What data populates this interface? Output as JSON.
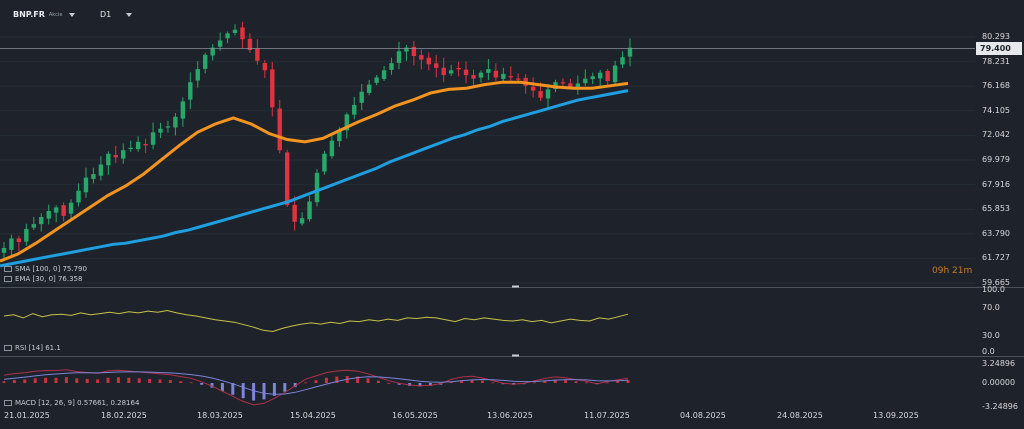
{
  "header": {
    "symbol": "BNP.FR",
    "symbol_sub": "Akcie",
    "timeframe": "D1"
  },
  "colors": {
    "background": "#1e232b",
    "bull": "#27a869",
    "bear": "#e0323f",
    "sma": "#1f9ee0",
    "ema": "#f2941f",
    "rsi": "#c9c14a",
    "macd_line": "#b0304a",
    "signal_line": "#7c84d8"
  },
  "price_panel": {
    "sma_legend": "SMA [100, 0] 75.790",
    "ema_legend": "EMA [30, 0] 76.358",
    "current_price": "79.400",
    "countdown_h": "09",
    "countdown_h_unit": "h",
    "countdown_m": "21",
    "countdown_m_unit": "m",
    "y_ticks": [
      "80.293",
      "78.231",
      "76.168",
      "74.105",
      "72.042",
      "69.979",
      "67.916",
      "65.853",
      "63.790",
      "61.727",
      "59.665"
    ]
  },
  "rsi_panel": {
    "legend": "RSI [14] 61.1",
    "y_ticks": [
      "100.0",
      "70.0",
      "30.0",
      "0.0"
    ]
  },
  "macd_panel": {
    "legend": "MACD [12, 26, 9] 0.57661, 0.28164",
    "y_ticks": [
      "3.24896",
      "0.00000",
      "-3.24896"
    ]
  },
  "x_axis": {
    "labels": [
      "21.01.2025",
      "18.02.2025",
      "18.03.2025",
      "15.04.2025",
      "16.05.2025",
      "13.06.2025",
      "11.07.2025",
      "04.08.2025",
      "24.08.2025",
      "13.09.2025"
    ]
  },
  "chart_data": [
    {
      "type": "candlestick",
      "title": "BNP.FR D1",
      "x": [
        "21.01.2025",
        "18.02.2025",
        "18.03.2025",
        "15.04.2025",
        "16.05.2025",
        "13.06.2025",
        "11.07.2025",
        "04.08.2025",
        "24.08.2025",
        "13.09.2025"
      ],
      "ylim": [
        59.665,
        81.3
      ],
      "close_path": [
        62.6,
        63.4,
        63.1,
        64.2,
        64.6,
        65.2,
        65.7,
        66.0,
        65.3,
        66.4,
        67.4,
        68.5,
        68.8,
        69.6,
        70.5,
        70.2,
        70.8,
        71.0,
        71.5,
        71.2,
        72.3,
        72.6,
        72.8,
        73.6,
        74.9,
        76.5,
        77.6,
        78.8,
        79.4,
        80.0,
        80.6,
        80.9,
        80.1,
        79.2,
        78.3,
        77.5,
        74.4,
        70.8,
        66.2,
        64.8,
        65.1,
        66.5,
        68.9,
        70.5,
        71.6,
        72.5,
        73.8,
        74.6,
        75.7,
        76.3,
        76.9,
        77.5,
        78.1,
        79.1,
        79.4,
        78.7,
        78.4,
        78.0,
        77.7,
        77.1,
        77.5,
        77.6,
        77.1,
        76.8,
        77.3,
        77.6,
        76.9,
        77.2,
        77.0,
        76.8,
        76.2,
        75.8,
        75.2,
        75.9,
        76.5,
        76.4,
        76.1,
        76.4,
        76.8,
        77.0,
        77.3,
        76.6,
        77.9,
        78.6,
        79.4
      ],
      "series": [
        {
          "name": "SMA [100, 0]",
          "last": 75.79,
          "path": [
            61.1,
            61.3,
            61.5,
            61.7,
            61.9,
            62.1,
            62.3,
            62.5,
            62.7,
            62.9,
            63.0,
            63.2,
            63.4,
            63.6,
            63.9,
            64.1,
            64.4,
            64.7,
            65.0,
            65.3,
            65.6,
            65.9,
            66.2,
            66.5,
            66.9,
            67.3,
            67.7,
            68.1,
            68.5,
            68.9,
            69.3,
            69.8,
            70.2,
            70.6,
            71.0,
            71.4,
            71.8,
            72.1,
            72.5,
            72.8,
            73.2,
            73.5,
            73.8,
            74.1,
            74.4,
            74.7,
            75.0,
            75.2,
            75.4,
            75.6,
            75.8
          ]
        },
        {
          "name": "EMA [30, 0]",
          "last": 76.358,
          "path": [
            61.5,
            62.1,
            63.0,
            64.0,
            65.0,
            66.0,
            67.0,
            67.8,
            68.8,
            70.0,
            71.2,
            72.3,
            73.0,
            73.5,
            73.0,
            72.2,
            71.7,
            71.5,
            71.8,
            72.5,
            73.2,
            73.8,
            74.5,
            75.0,
            75.6,
            75.9,
            76.0,
            76.3,
            76.5,
            76.5,
            76.3,
            76.1,
            76.0,
            76.0,
            76.2,
            76.4
          ]
        }
      ]
    },
    {
      "type": "line",
      "title": "RSI [14]",
      "ylim": [
        0,
        100
      ],
      "series": [
        {
          "name": "RSI [14]",
          "last": 61.1,
          "values": [
            58,
            60,
            55,
            62,
            57,
            60,
            61,
            59,
            63,
            60,
            62,
            64,
            62,
            65,
            63,
            66,
            64,
            67,
            63,
            60,
            58,
            55,
            52,
            50,
            48,
            44,
            40,
            35,
            33,
            38,
            42,
            45,
            47,
            45,
            48,
            46,
            50,
            49,
            52,
            50,
            53,
            51,
            55,
            54,
            56,
            55,
            52,
            49,
            54,
            52,
            55,
            53,
            51,
            50,
            52,
            49,
            51,
            47,
            50,
            53,
            51,
            50,
            55,
            53,
            57,
            61
          ]
        }
      ]
    },
    {
      "type": "bar+line",
      "title": "MACD [12, 26, 9]",
      "ylim": [
        -3.24896,
        3.24896
      ],
      "series": [
        {
          "name": "MACD",
          "last": 0.57661
        },
        {
          "name": "Signal",
          "last": 0.28164
        }
      ],
      "histogram": [
        0.3,
        0.5,
        0.6,
        0.8,
        0.9,
        0.9,
        1.0,
        0.8,
        0.7,
        0.6,
        0.9,
        1.0,
        0.9,
        0.8,
        0.7,
        0.6,
        0.5,
        0.3,
        0.1,
        -0.3,
        -0.8,
        -1.4,
        -2.0,
        -2.6,
        -3.0,
        -2.8,
        -2.2,
        -1.5,
        -0.7,
        0.1,
        0.5,
        0.9,
        1.1,
        1.2,
        1.1,
        0.8,
        0.4,
        0.0,
        -0.3,
        -0.5,
        -0.6,
        -0.5,
        -0.3,
        0.2,
        0.5,
        0.6,
        0.4,
        0.1,
        -0.2,
        -0.3,
        -0.2,
        0.1,
        0.4,
        0.6,
        0.5,
        0.3,
        0.1,
        -0.2,
        0.1,
        0.3,
        0.5
      ]
    }
  ]
}
